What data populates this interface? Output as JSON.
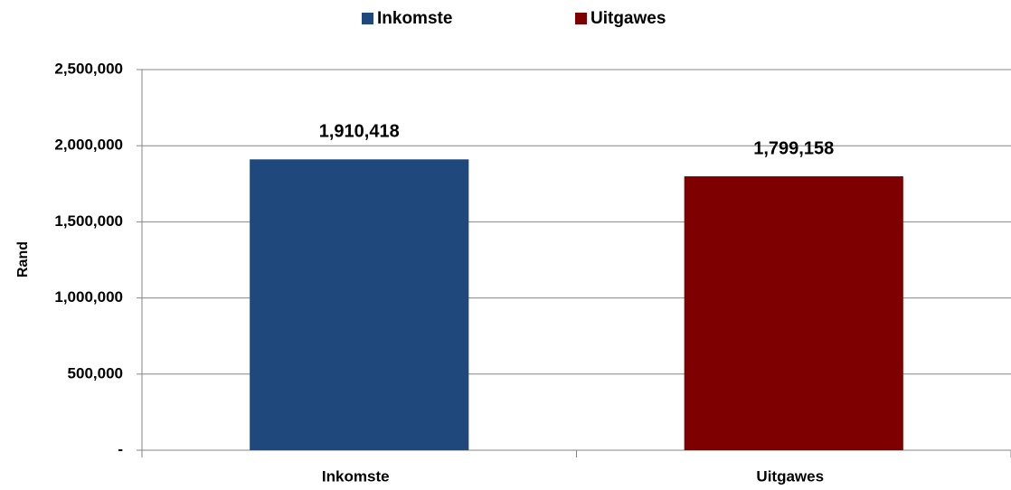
{
  "chart_data": {
    "type": "bar",
    "ylabel": "Rand",
    "categories": [
      "Inkomste",
      "Uitgawes"
    ],
    "values": [
      1910418,
      1799158
    ],
    "value_labels": [
      "1,910,418",
      "1,799,158"
    ],
    "colors": [
      "#1f497d",
      "#7f0000"
    ],
    "ylim": [
      0,
      2500000
    ],
    "yticks": [
      {
        "value": 0,
        "label": "-"
      },
      {
        "value": 500000,
        "label": "500,000"
      },
      {
        "value": 1000000,
        "label": "1,000,000"
      },
      {
        "value": 1500000,
        "label": "1,500,000"
      },
      {
        "value": 2000000,
        "label": "2,000,000"
      },
      {
        "value": 2500000,
        "label": "2,500,000"
      }
    ],
    "grid": true,
    "legend": "top"
  }
}
